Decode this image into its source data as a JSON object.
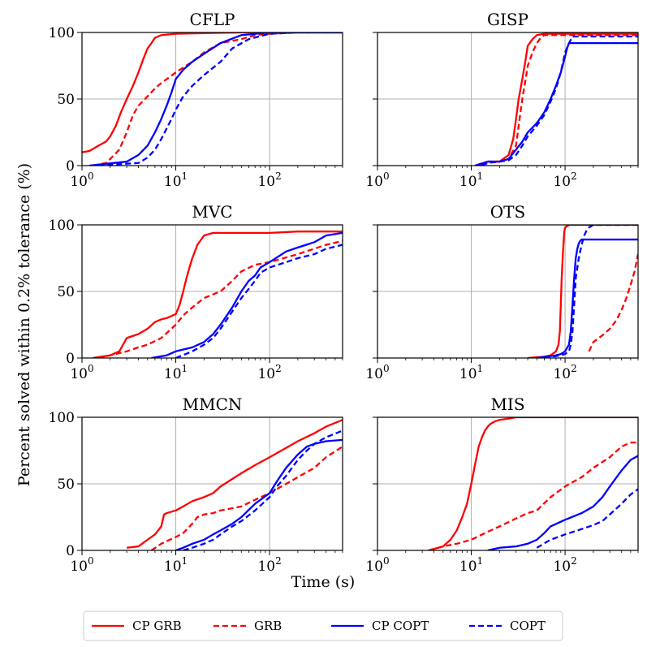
{
  "figure": {
    "ylabel": "Percent solved within 0.2% tolerance (%)",
    "xlabel": "Time (s)"
  },
  "legend": {
    "placement": "bottom-center",
    "entries": [
      {
        "label": "CP GRB",
        "color": "#ff0000",
        "dashed": false
      },
      {
        "label": "GRB",
        "color": "#ff0000",
        "dashed": true
      },
      {
        "label": "CP COPT",
        "color": "#0000ff",
        "dashed": false
      },
      {
        "label": "COPT",
        "color": "#0000ff",
        "dashed": true
      }
    ]
  },
  "axes_common": {
    "x_scale": "log",
    "xlim": [
      1,
      600
    ],
    "ylim": [
      0,
      100
    ],
    "xtick_values": [
      1,
      10,
      100
    ],
    "xtick_labels": [
      "10^0",
      "10^1",
      "10^2"
    ],
    "ytick_values": [
      0,
      50,
      100
    ],
    "ytick_labels": [
      "0",
      "50",
      "100"
    ],
    "grid": true
  },
  "chart_data": [
    {
      "type": "line",
      "title": "CFLP",
      "show_yticklabels": true,
      "series": [
        {
          "name": "CP GRB",
          "x": [
            1,
            1.2,
            1.5,
            1.8,
            2.0,
            2.3,
            2.6,
            3.0,
            3.5,
            4.0,
            4.5,
            5.0,
            5.5,
            6.0,
            7.0,
            10,
            20,
            50,
            100,
            200,
            600
          ],
          "y": [
            10,
            11,
            15,
            18,
            22,
            30,
            40,
            50,
            60,
            70,
            80,
            88,
            92,
            96,
            98,
            99,
            99.5,
            100,
            100,
            100,
            100
          ]
        },
        {
          "name": "GRB",
          "x": [
            1.3,
            1.8,
            2.0,
            2.5,
            3.0,
            3.5,
            4.0,
            5.0,
            6.0,
            7.0,
            8.0,
            10,
            15,
            20,
            30,
            50,
            70,
            100,
            200,
            600
          ],
          "y": [
            0,
            2,
            5,
            12,
            25,
            38,
            45,
            52,
            58,
            62,
            65,
            70,
            78,
            85,
            92,
            95,
            98,
            99,
            100,
            100
          ]
        },
        {
          "name": "CP COPT",
          "x": [
            1.2,
            3.0,
            4.0,
            5.0,
            6.0,
            7.0,
            8.0,
            9.0,
            10,
            12,
            15,
            20,
            30,
            50,
            100,
            200,
            600
          ],
          "y": [
            0,
            3,
            8,
            15,
            25,
            35,
            45,
            55,
            65,
            72,
            78,
            84,
            92,
            98,
            100,
            100,
            100
          ]
        },
        {
          "name": "COPT",
          "x": [
            1.5,
            4.0,
            5.0,
            6.0,
            7.0,
            8.0,
            9.0,
            10,
            12,
            15,
            20,
            30,
            40,
            60,
            100,
            200,
            600
          ],
          "y": [
            0,
            2,
            6,
            12,
            20,
            28,
            35,
            42,
            52,
            60,
            68,
            78,
            88,
            95,
            99,
            100,
            100
          ]
        }
      ]
    },
    {
      "type": "line",
      "title": "GISP",
      "show_yticklabels": false,
      "series": [
        {
          "name": "CP GRB",
          "x": [
            11,
            15,
            20,
            25,
            28,
            30,
            32,
            35,
            38,
            40,
            45,
            50,
            60,
            600
          ],
          "y": [
            0,
            3,
            3,
            8,
            20,
            35,
            50,
            65,
            80,
            90,
            95,
            98,
            99,
            99
          ]
        },
        {
          "name": "GRB",
          "x": [
            12,
            15,
            20,
            25,
            30,
            32,
            35,
            38,
            40,
            45,
            50,
            55,
            60,
            70,
            600
          ],
          "y": [
            0,
            3,
            3,
            5,
            15,
            30,
            50,
            65,
            75,
            85,
            92,
            96,
            98,
            98,
            98
          ]
        },
        {
          "name": "CP COPT",
          "x": [
            11,
            15,
            20,
            25,
            30,
            35,
            40,
            50,
            60,
            70,
            80,
            90,
            100,
            105,
            110,
            600
          ],
          "y": [
            0,
            3,
            3,
            5,
            12,
            18,
            25,
            32,
            40,
            50,
            60,
            70,
            82,
            88,
            92,
            92
          ]
        },
        {
          "name": "COPT",
          "x": [
            13,
            15,
            20,
            25,
            30,
            35,
            40,
            50,
            60,
            70,
            80,
            90,
            100,
            110,
            120,
            600
          ],
          "y": [
            0,
            2,
            3,
            4,
            8,
            15,
            22,
            30,
            38,
            48,
            58,
            70,
            85,
            92,
            97,
            97
          ]
        }
      ]
    },
    {
      "type": "line",
      "title": "MVC",
      "show_yticklabels": true,
      "series": [
        {
          "name": "CP GRB",
          "x": [
            1.3,
            2.0,
            2.5,
            3.0,
            4.0,
            5.0,
            6.0,
            7.0,
            8.0,
            10,
            11,
            12,
            13,
            14,
            15,
            17,
            20,
            25,
            30,
            50,
            100,
            200,
            600
          ],
          "y": [
            0,
            2,
            5,
            15,
            18,
            22,
            27,
            29,
            30,
            33,
            40,
            50,
            60,
            68,
            75,
            85,
            92,
            94,
            94,
            94,
            94,
            95,
            95
          ]
        },
        {
          "name": "GRB",
          "x": [
            1.5,
            2.0,
            3.0,
            4.0,
            5.0,
            7.0,
            10,
            12,
            15,
            20,
            30,
            40,
            50,
            70,
            100,
            200,
            400,
            600
          ],
          "y": [
            0,
            2,
            5,
            8,
            10,
            15,
            25,
            32,
            38,
            45,
            50,
            58,
            65,
            70,
            72,
            78,
            85,
            88
          ]
        },
        {
          "name": "CP COPT",
          "x": [
            5.5,
            8.0,
            10,
            15,
            20,
            25,
            30,
            40,
            50,
            60,
            70,
            80,
            100,
            150,
            200,
            300,
            400,
            600
          ],
          "y": [
            0,
            2,
            5,
            8,
            12,
            18,
            25,
            38,
            50,
            58,
            62,
            68,
            72,
            80,
            83,
            87,
            92,
            94
          ]
        },
        {
          "name": "COPT",
          "x": [
            10,
            15,
            20,
            25,
            30,
            40,
            50,
            60,
            70,
            80,
            100,
            150,
            200,
            300,
            400,
            600
          ],
          "y": [
            0,
            5,
            10,
            15,
            22,
            35,
            45,
            52,
            58,
            64,
            68,
            72,
            75,
            78,
            82,
            85
          ]
        }
      ]
    },
    {
      "type": "line",
      "title": "OTS",
      "show_yticklabels": false,
      "series": [
        {
          "name": "CP GRB",
          "x": [
            40,
            60,
            70,
            80,
            85,
            88,
            90,
            92,
            95,
            98,
            100,
            105,
            110,
            600
          ],
          "y": [
            0,
            1,
            2,
            5,
            10,
            20,
            40,
            60,
            80,
            95,
            98,
            99,
            100,
            100
          ]
        },
        {
          "name": "GRB",
          "x": [
            180,
            200,
            250,
            300,
            350,
            400,
            450,
            500,
            550,
            600
          ],
          "y": [
            5,
            12,
            17,
            22,
            28,
            36,
            45,
            55,
            65,
            78
          ]
        },
        {
          "name": "CP COPT",
          "x": [
            50,
            80,
            90,
            100,
            110,
            115,
            120,
            125,
            130,
            135,
            140,
            145,
            150,
            600
          ],
          "y": [
            0,
            2,
            3,
            5,
            10,
            20,
            40,
            60,
            75,
            82,
            86,
            88,
            89,
            89
          ]
        },
        {
          "name": "COPT",
          "x": [
            60,
            90,
            100,
            110,
            115,
            120,
            125,
            130,
            140,
            150,
            160,
            170,
            180,
            200,
            600
          ],
          "y": [
            0,
            2,
            3,
            5,
            10,
            20,
            40,
            60,
            75,
            85,
            92,
            96,
            98,
            100,
            100
          ]
        }
      ]
    },
    {
      "type": "line",
      "title": "MMCN",
      "show_yticklabels": true,
      "series": [
        {
          "name": "CP GRB",
          "x": [
            3,
            4,
            5,
            6,
            7,
            7.5,
            8,
            10,
            12,
            15,
            20,
            25,
            30,
            50,
            70,
            100,
            150,
            200,
            300,
            400,
            600
          ],
          "y": [
            2,
            3,
            8,
            12,
            18,
            27,
            28,
            30,
            33,
            37,
            40,
            43,
            48,
            58,
            64,
            70,
            77,
            82,
            88,
            93,
            98
          ]
        },
        {
          "name": "GRB",
          "x": [
            5.5,
            7.0,
            8.0,
            10,
            12,
            15,
            17,
            20,
            25,
            30,
            50,
            70,
            100,
            150,
            200,
            300,
            400,
            600
          ],
          "y": [
            0,
            5,
            7,
            10,
            13,
            20,
            25,
            27,
            28,
            30,
            33,
            38,
            43,
            50,
            55,
            62,
            70,
            78
          ]
        },
        {
          "name": "CP COPT",
          "x": [
            10,
            12,
            15,
            20,
            25,
            30,
            40,
            50,
            70,
            100,
            120,
            150,
            200,
            250,
            300,
            400,
            600
          ],
          "y": [
            0,
            2,
            5,
            8,
            12,
            15,
            20,
            25,
            35,
            43,
            52,
            62,
            72,
            78,
            80,
            82,
            83
          ]
        },
        {
          "name": "COPT",
          "x": [
            12,
            15,
            20,
            25,
            30,
            40,
            50,
            70,
            100,
            120,
            150,
            200,
            250,
            300,
            400,
            600
          ],
          "y": [
            0,
            2,
            5,
            8,
            12,
            18,
            22,
            30,
            40,
            48,
            56,
            68,
            75,
            80,
            85,
            90
          ]
        }
      ]
    },
    {
      "type": "line",
      "title": "MIS",
      "show_yticklabels": false,
      "series": [
        {
          "name": "CP GRB",
          "x": [
            3.5,
            5.0,
            6.0,
            7.0,
            8.0,
            9.0,
            10,
            11,
            12,
            13,
            14,
            15,
            16,
            18,
            20,
            25,
            30,
            50,
            100,
            600
          ],
          "y": [
            0,
            3,
            8,
            15,
            25,
            35,
            50,
            65,
            78,
            85,
            90,
            93,
            95,
            97,
            98,
            99,
            100,
            100,
            100,
            100
          ]
        },
        {
          "name": "GRB",
          "x": [
            3.5,
            5.0,
            7.0,
            10,
            15,
            20,
            30,
            40,
            50,
            70,
            100,
            150,
            200,
            300,
            400,
            500,
            600
          ],
          "y": [
            0,
            3,
            5,
            8,
            14,
            18,
            24,
            28,
            30,
            40,
            48,
            55,
            62,
            70,
            78,
            81,
            81
          ]
        },
        {
          "name": "CP COPT",
          "x": [
            15,
            20,
            30,
            40,
            50,
            60,
            70,
            100,
            150,
            200,
            250,
            300,
            400,
            500,
            600
          ],
          "y": [
            0,
            2,
            3,
            5,
            8,
            13,
            18,
            23,
            28,
            33,
            40,
            48,
            60,
            68,
            71
          ]
        },
        {
          "name": "COPT",
          "x": [
            50,
            70,
            100,
            150,
            200,
            250,
            300,
            400,
            500,
            600
          ],
          "y": [
            2,
            8,
            12,
            16,
            19,
            22,
            27,
            35,
            42,
            46
          ]
        }
      ]
    }
  ]
}
